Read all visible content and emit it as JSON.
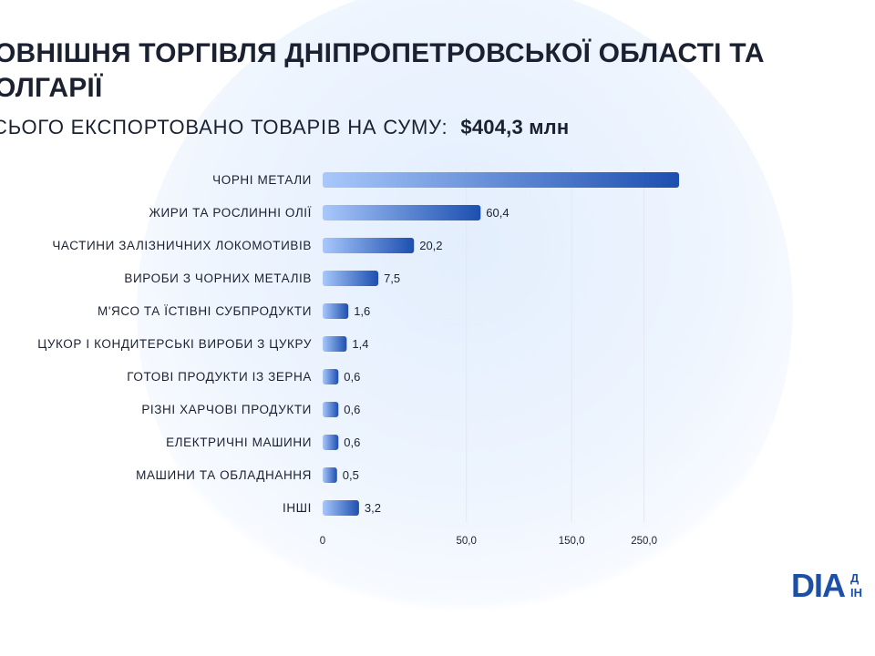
{
  "header": {
    "title": "ОВНІШНЯ ТОРГІВЛЯ ДНІПРОПЕТРОВСЬКОЇ ОБЛАСТІ ТА ОЛГАРІЇ",
    "subtitle": "СЬОГО ЕКСПОРТОВАНО ТОВАРІВ НА СУМУ:",
    "amount": "$404,3 млн"
  },
  "logo": {
    "mark": "DІA",
    "side_top": "Д",
    "side_bottom": "ІН"
  },
  "colors": {
    "bar_start": "#a8c8fb",
    "bar_end": "#1d4fb0",
    "grid": "#e3e8f0",
    "text": "#1b2130"
  },
  "chart_data": {
    "type": "bar",
    "orientation": "horizontal",
    "title": "",
    "xlabel": "",
    "ylabel": "",
    "categories": [
      "ЧОРНІ МЕТАЛИ",
      "ЖИРИ ТА РОСЛИННІ ОЛІЇ",
      "ЧАСТИНИ ЗАЛІЗНИЧНИХ ЛОКОМОТИВІВ",
      "ВИРОБИ З ЧОРНИХ МЕТАЛІВ",
      "М'ЯСО ТА ЇСТІВНІ СУБПРОДУКТИ",
      "ЦУКОР І КОНДИТЕРСЬКІ ВИРОБИ З ЦУКРУ",
      "ГОТОВІ ПРОДУКТИ ІЗ ЗЕРНА",
      "РІЗНІ ХАРЧОВІ ПРОДУКТИ",
      "ЕЛЕКТРИЧНІ МАШИНИ",
      "МАШИНИ ТА ОБЛАДНАННЯ",
      "ІНШІ"
    ],
    "values": [
      307.5,
      60.4,
      20.2,
      7.5,
      1.6,
      1.4,
      0.6,
      0.6,
      0.6,
      0.5,
      3.2
    ],
    "value_labels": [
      "",
      "60,4",
      "20,2",
      "7,5",
      "1,6",
      "1,4",
      "0,6",
      "0,6",
      "0,6",
      "0,5",
      "3,2"
    ],
    "x_scale": "sqrt",
    "x_ticks": [
      0,
      50,
      150,
      250
    ],
    "x_tick_labels": [
      "0",
      "50,0",
      "150,0",
      "250,0"
    ],
    "grid": true,
    "legend": "none"
  }
}
